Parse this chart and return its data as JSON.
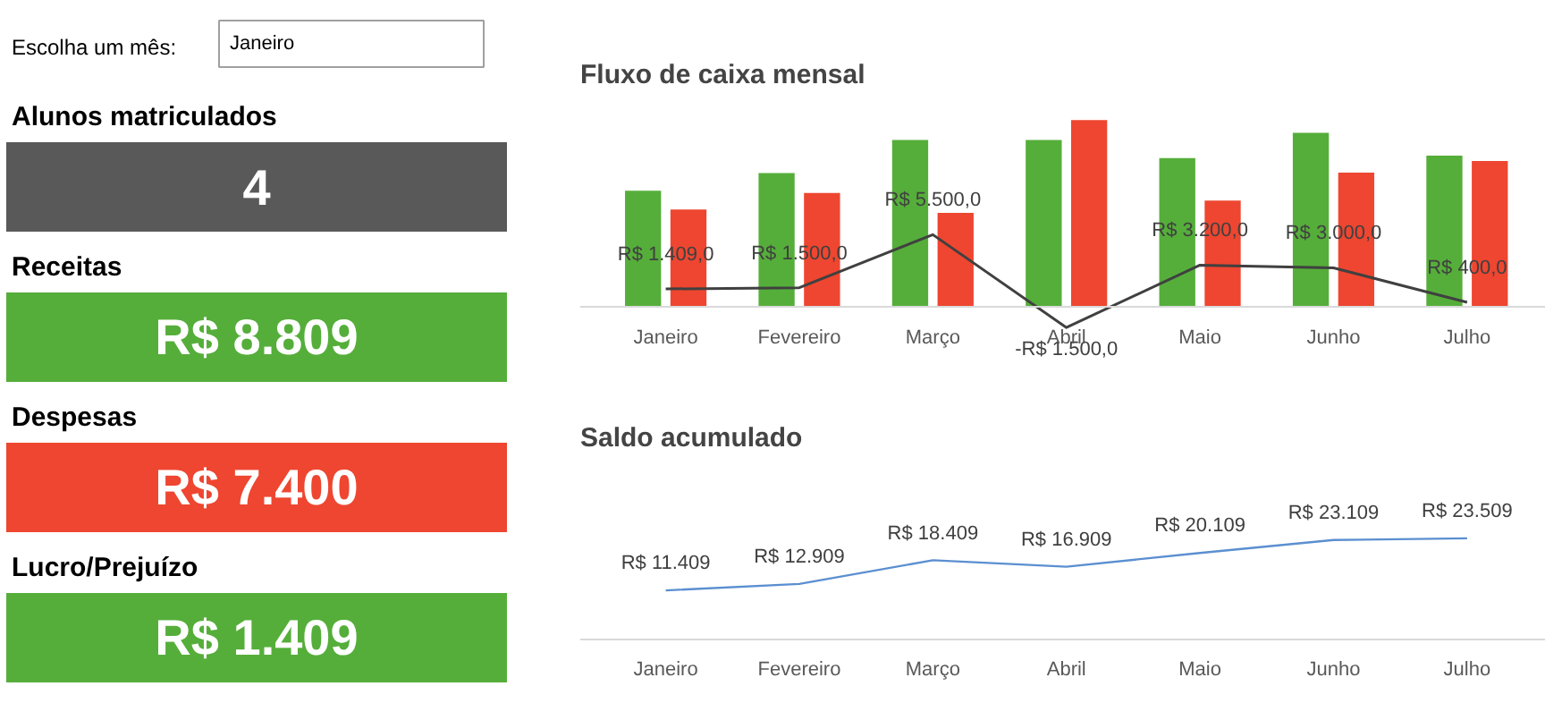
{
  "chart_data": [
    {
      "type": "other",
      "title": "Escolha um mês:",
      "annotations": [
        "Janeiro"
      ]
    },
    {
      "type": "other",
      "title": "Alunos matriculados",
      "annotations": [
        "4"
      ],
      "color": "#595959"
    },
    {
      "type": "other",
      "title": "Receitas",
      "annotations": [
        "R$ 8.809"
      ],
      "color": "#55ae3a"
    },
    {
      "type": "other",
      "title": "Despesas",
      "annotations": [
        "R$ 7.400"
      ],
      "color": "#ee4630"
    },
    {
      "type": "other",
      "title": "Lucro/Prejuízo",
      "annotations": [
        "R$ 1.409"
      ],
      "color": "#55ae3a"
    },
    {
      "type": "bar",
      "title": "Fluxo de caixa mensal",
      "categories": [
        "Janeiro",
        "Fevereiro",
        "Março",
        "Abril",
        "Maio",
        "Junho",
        "Julho"
      ],
      "series": [
        {
          "color": "#55ae3a",
          "values": [
            8809,
            10150,
            12640,
            12640,
            11270,
            13170,
            11460
          ]
        },
        {
          "color": "#ee4630",
          "values": [
            7400,
            8650,
            7140,
            14140,
            8070,
            10170,
            11060
          ]
        },
        {
          "type": "line",
          "color": "#404040",
          "values": [
            1409,
            1500,
            5500,
            -1500,
            3200,
            3000,
            400
          ],
          "value_labels": [
            "R$ 1.409,0",
            "R$ 1.500,0",
            "R$ 5.500,0",
            "-R$ 1.500,0",
            "R$ 3.200,0",
            "R$ 3.000,0",
            "R$ 400,0"
          ]
        }
      ],
      "tick_labels": "x",
      "grid": false
    },
    {
      "type": "line",
      "title": "Saldo acumulado",
      "categories": [
        "Janeiro",
        "Fevereiro",
        "Março",
        "Abril",
        "Maio",
        "Junho",
        "Julho"
      ],
      "series": [
        {
          "color": "#5b8fd0",
          "values": [
            11409,
            12909,
            18409,
            16909,
            20109,
            23109,
            23509
          ],
          "value_labels": [
            "R$ 11.409",
            "R$ 12.909",
            "R$ 18.409",
            "R$ 16.909",
            "R$ 20.109",
            "R$ 23.109",
            "R$ 23.509"
          ]
        }
      ],
      "tick_labels": "x",
      "grid": false
    }
  ]
}
